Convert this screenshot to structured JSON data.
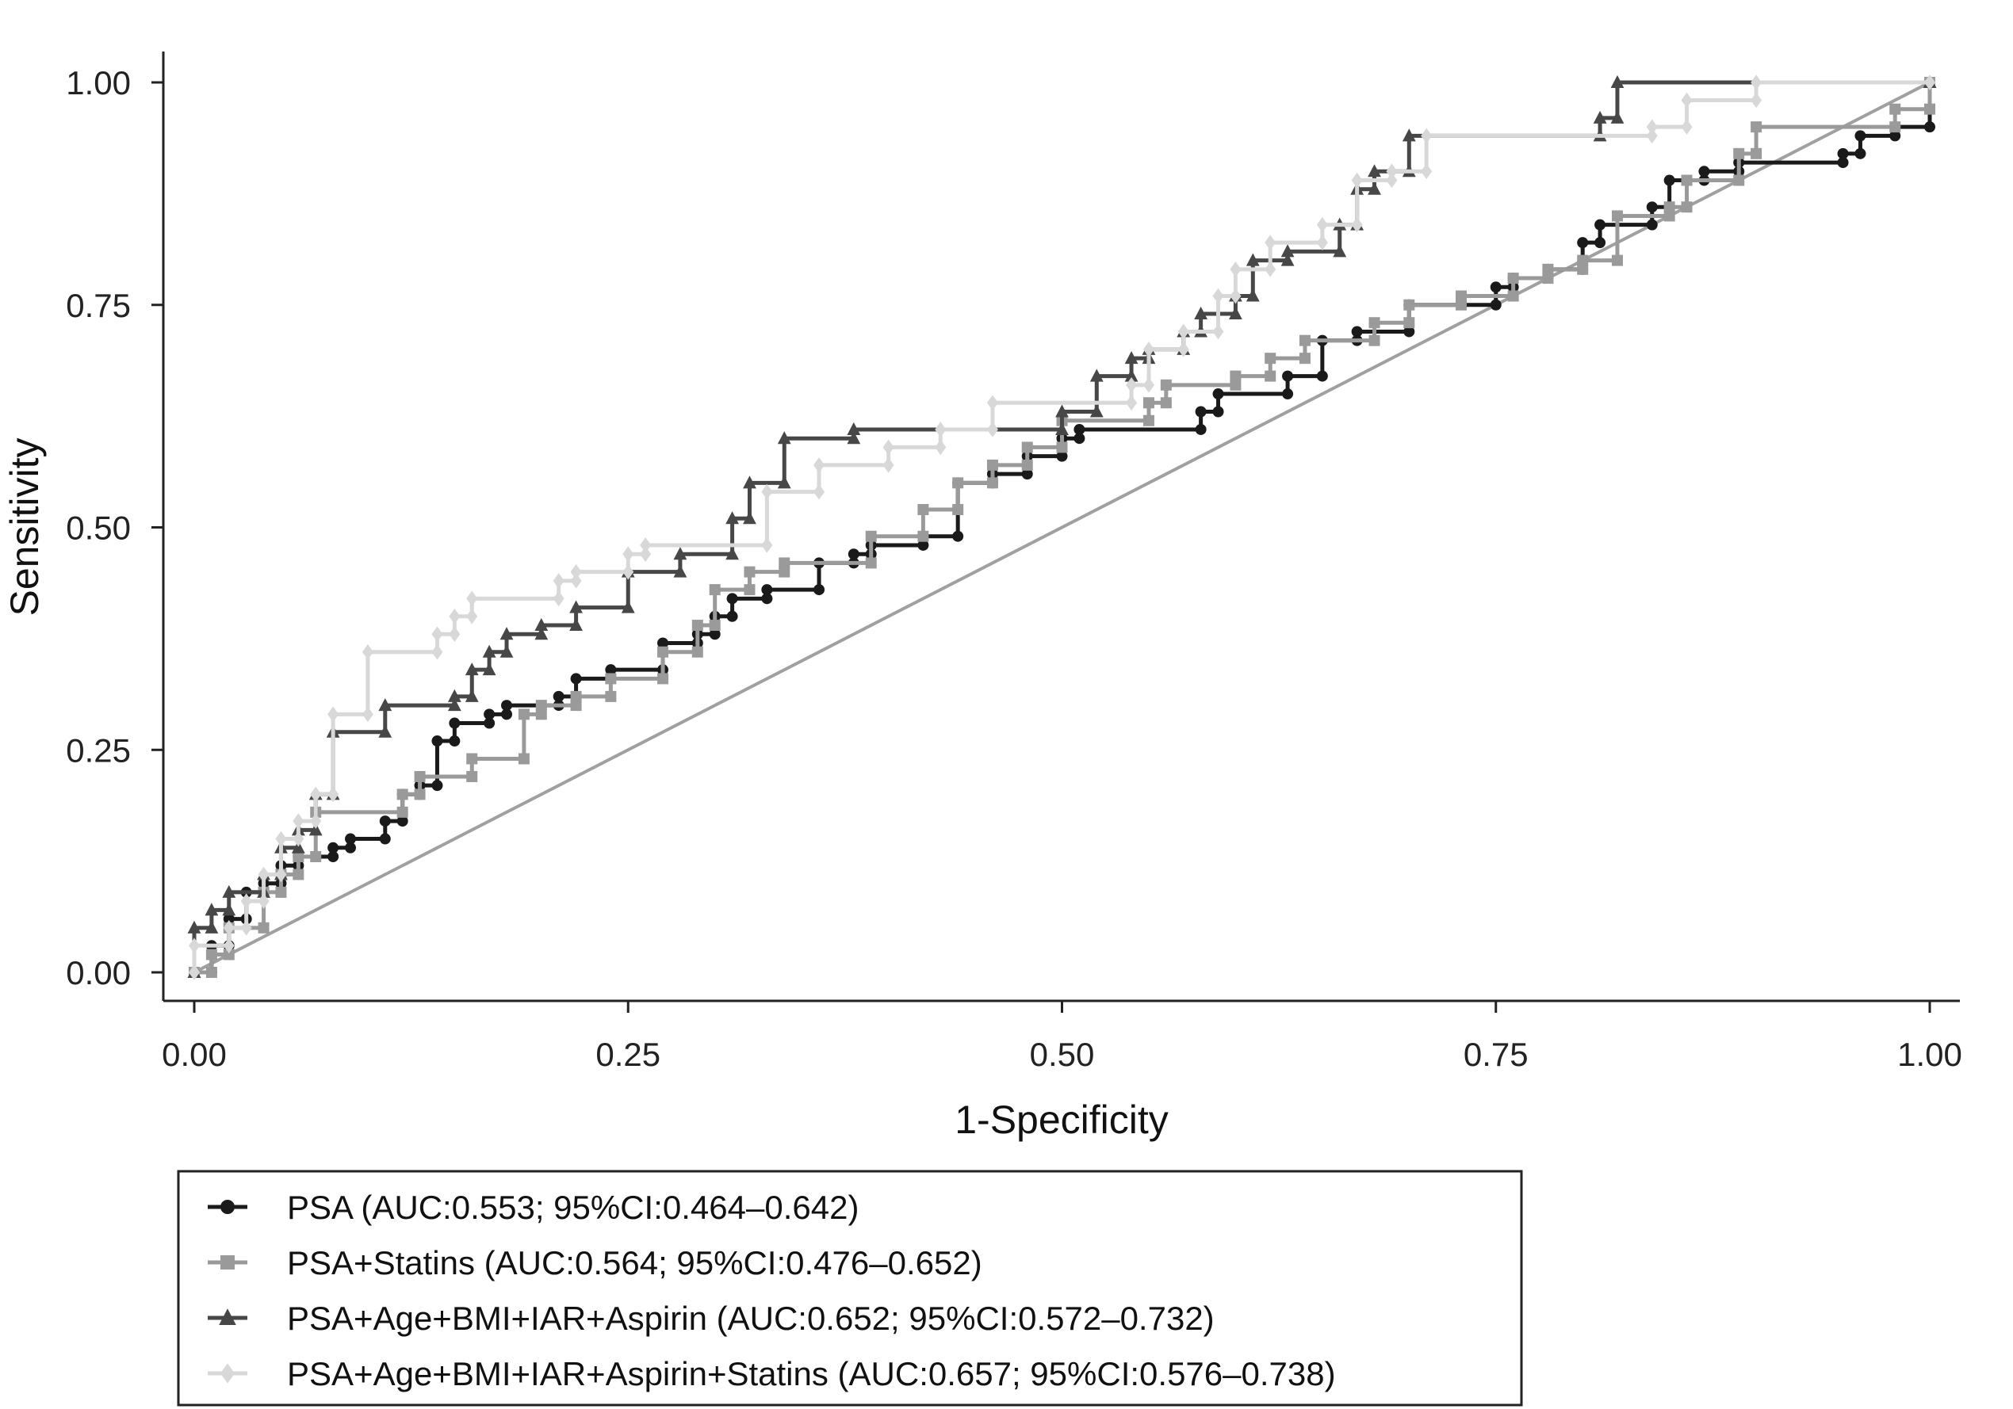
{
  "chart_data": {
    "type": "line",
    "xlabel": "1-Specificity",
    "ylabel": "Sensitivity",
    "xlim": [
      0,
      1
    ],
    "ylim": [
      0,
      1
    ],
    "xticks": [
      "0.00",
      "0.25",
      "0.50",
      "0.75",
      "1.00"
    ],
    "yticks": [
      "0.00",
      "0.25",
      "0.50",
      "0.75",
      "1.00"
    ],
    "grid": false,
    "legend_position": "bottom",
    "reference_line": {
      "x": [
        0,
        1
      ],
      "y": [
        0,
        1
      ],
      "color": "#a0a0a0"
    },
    "series": [
      {
        "name": "PSA (AUC:0.553; 95%CI:0.464–0.642)",
        "color": "#1a1a1a",
        "marker": "circle",
        "x": [
          0,
          0.01,
          0.02,
          0.03,
          0.04,
          0.05,
          0.06,
          0.08,
          0.09,
          0.11,
          0.12,
          0.13,
          0.14,
          0.15,
          0.17,
          0.18,
          0.21,
          0.22,
          0.24,
          0.27,
          0.29,
          0.3,
          0.31,
          0.33,
          0.36,
          0.38,
          0.39,
          0.42,
          0.44,
          0.46,
          0.48,
          0.5,
          0.51,
          0.58,
          0.59,
          0.63,
          0.65,
          0.67,
          0.7,
          0.75,
          0.76,
          0.78,
          0.8,
          0.81,
          0.84,
          0.85,
          0.87,
          0.89,
          0.95,
          0.96,
          0.98,
          1.0
        ],
        "y": [
          0,
          0.03,
          0.06,
          0.09,
          0.1,
          0.12,
          0.13,
          0.14,
          0.15,
          0.17,
          0.2,
          0.21,
          0.26,
          0.28,
          0.29,
          0.3,
          0.31,
          0.33,
          0.34,
          0.37,
          0.38,
          0.4,
          0.42,
          0.43,
          0.46,
          0.47,
          0.48,
          0.49,
          0.55,
          0.56,
          0.58,
          0.6,
          0.61,
          0.63,
          0.65,
          0.67,
          0.71,
          0.72,
          0.75,
          0.77,
          0.78,
          0.79,
          0.82,
          0.84,
          0.86,
          0.89,
          0.9,
          0.91,
          0.92,
          0.94,
          0.95,
          1.0
        ]
      },
      {
        "name": "PSA+Statins (AUC:0.564; 95%CI:0.476–0.652)",
        "color": "#9a9a9a",
        "marker": "square",
        "x": [
          0,
          0.01,
          0.02,
          0.04,
          0.05,
          0.06,
          0.07,
          0.12,
          0.13,
          0.16,
          0.19,
          0.2,
          0.22,
          0.24,
          0.27,
          0.29,
          0.3,
          0.32,
          0.34,
          0.39,
          0.42,
          0.44,
          0.46,
          0.48,
          0.5,
          0.55,
          0.56,
          0.6,
          0.62,
          0.64,
          0.68,
          0.7,
          0.73,
          0.76,
          0.78,
          0.8,
          0.82,
          0.85,
          0.86,
          0.89,
          0.9,
          0.98,
          1.0
        ],
        "y": [
          0,
          0.02,
          0.05,
          0.09,
          0.11,
          0.13,
          0.18,
          0.2,
          0.22,
          0.24,
          0.29,
          0.3,
          0.31,
          0.33,
          0.36,
          0.39,
          0.43,
          0.45,
          0.46,
          0.49,
          0.52,
          0.55,
          0.57,
          0.59,
          0.62,
          0.64,
          0.66,
          0.67,
          0.69,
          0.71,
          0.73,
          0.75,
          0.76,
          0.78,
          0.79,
          0.8,
          0.85,
          0.86,
          0.89,
          0.92,
          0.95,
          0.97,
          1.0
        ]
      },
      {
        "name": "PSA+Age+BMI+IAR+Aspirin (AUC:0.652; 95%CI:0.572–0.732)",
        "color": "#474747",
        "marker": "triangle",
        "x": [
          0,
          0,
          0.01,
          0.02,
          0.04,
          0.05,
          0.06,
          0.07,
          0.08,
          0.11,
          0.15,
          0.16,
          0.17,
          0.18,
          0.2,
          0.22,
          0.25,
          0.28,
          0.31,
          0.32,
          0.34,
          0.38,
          0.5,
          0.52,
          0.54,
          0.55,
          0.57,
          0.58,
          0.6,
          0.61,
          0.63,
          0.66,
          0.67,
          0.68,
          0.7,
          0.81,
          0.82,
          1.0
        ],
        "y": [
          0,
          0.05,
          0.07,
          0.09,
          0.11,
          0.14,
          0.16,
          0.2,
          0.27,
          0.3,
          0.31,
          0.34,
          0.36,
          0.38,
          0.39,
          0.41,
          0.45,
          0.47,
          0.51,
          0.55,
          0.6,
          0.61,
          0.63,
          0.67,
          0.69,
          0.7,
          0.72,
          0.74,
          0.76,
          0.8,
          0.81,
          0.84,
          0.88,
          0.9,
          0.94,
          0.96,
          1.0,
          1.0
        ]
      },
      {
        "name": "PSA+Age+BMI+IAR+Aspirin+Statins (AUC:0.657; 95%CI:0.576–0.738)",
        "color": "#d8d8d8",
        "marker": "diamond",
        "x": [
          0,
          0,
          0.02,
          0.03,
          0.04,
          0.05,
          0.06,
          0.07,
          0.08,
          0.1,
          0.14,
          0.15,
          0.16,
          0.21,
          0.22,
          0.25,
          0.26,
          0.33,
          0.36,
          0.4,
          0.43,
          0.46,
          0.54,
          0.55,
          0.57,
          0.59,
          0.6,
          0.62,
          0.65,
          0.67,
          0.69,
          0.71,
          0.84,
          0.86,
          0.9,
          1.0
        ],
        "y": [
          0,
          0.03,
          0.05,
          0.08,
          0.11,
          0.15,
          0.17,
          0.2,
          0.29,
          0.36,
          0.38,
          0.4,
          0.42,
          0.44,
          0.45,
          0.47,
          0.48,
          0.54,
          0.57,
          0.59,
          0.61,
          0.64,
          0.66,
          0.7,
          0.72,
          0.76,
          0.79,
          0.82,
          0.84,
          0.89,
          0.9,
          0.94,
          0.95,
          0.98,
          1.0,
          1.0
        ]
      }
    ]
  }
}
